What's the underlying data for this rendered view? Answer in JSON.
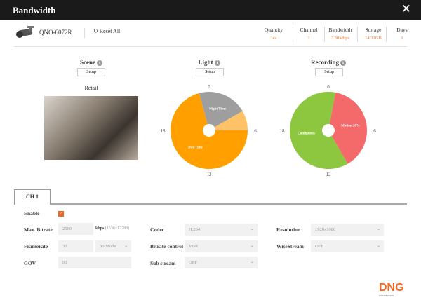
{
  "title": "Bandwidth",
  "close_icon": "close-icon",
  "model": "QNO-6072R",
  "reset_label": "Reset All",
  "stats": [
    {
      "label": "Quantity",
      "value": "1ea"
    },
    {
      "label": "Channel",
      "value": "1"
    },
    {
      "label": "Bandwidth",
      "value": "2.30Mbps"
    },
    {
      "label": "Storage",
      "value": "14.31GB"
    },
    {
      "label": "Days",
      "value": "1"
    }
  ],
  "sections": {
    "scene": "Scene",
    "light": "Light",
    "recording": "Recording",
    "setup": "Setup",
    "info": "i"
  },
  "scene_value": "Retail",
  "clock": {
    "top": "0",
    "right": "6",
    "bottom": "12",
    "left": "18"
  },
  "light_pie": {
    "segments": [
      {
        "label": "Night Time",
        "from": 23,
        "to": 4,
        "color": "#9e9e9e"
      },
      {
        "label": "",
        "from": 4,
        "to": 6,
        "color": "#ffc266"
      },
      {
        "label": "Day Time",
        "from": 6,
        "to": 23,
        "color": "#ffa000"
      }
    ]
  },
  "recording_pie": {
    "segments": [
      {
        "label": "Motion 20%",
        "from": 0.7,
        "to": 10,
        "color": "#f46a6a"
      },
      {
        "label": "Continuous",
        "from": 10,
        "to": 24.7,
        "color": "#8dc63f"
      }
    ]
  },
  "tab": "CH 1",
  "form": {
    "enable": "Enable",
    "enable_checked": true,
    "max_bitrate": "Max. Bitrate",
    "max_bitrate_value": "2560",
    "unit": "kbps",
    "range": "(1536~12288)",
    "framerate": "Framerate",
    "framerate_value": "30",
    "framerate_mode": "30 Mode",
    "gov": "GOV",
    "gov_value": "60",
    "codec": "Codec",
    "codec_value": "H.264",
    "bitrate_control": "Bitrate control",
    "bitrate_control_value": "VBR",
    "sub_stream": "Sub stream",
    "sub_stream_value": "OFF",
    "resolution": "Resolution",
    "resolution_value": "1920x1080",
    "wisestream": "WiseStream",
    "wisestream_value": "OFF"
  },
  "logo": {
    "main": "DNG",
    "sub": "DISTRIBUTION"
  },
  "accent": "#f26522"
}
